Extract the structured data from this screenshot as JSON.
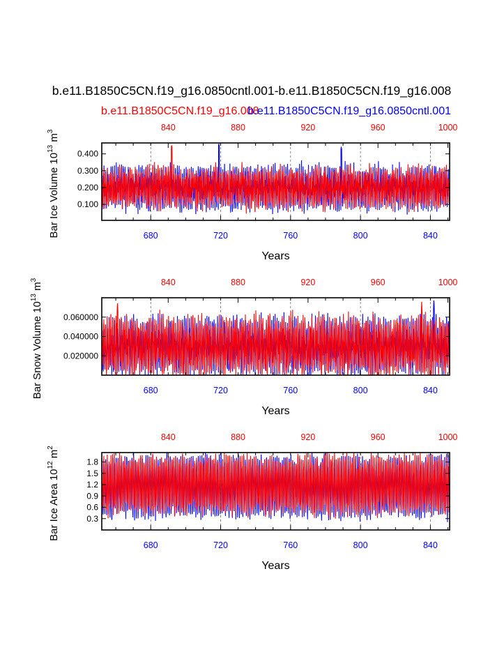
{
  "title": "b.e11.B1850C5CN.f19_g16.0850cntl.001-b.e11.B1850C5CN.f19_g16.008",
  "legend": {
    "red": "b.e11.B1850C5CN.f19_g16.008",
    "blue": "b.e11.B1850C5CN.f19_g16.0850cntl.001"
  },
  "colors": {
    "red_series": "#ff0000",
    "blue_series": "#0000ff",
    "axis": "#000000"
  },
  "chart_data": [
    {
      "type": "line",
      "ylabel": "Bar Ice Volume 10",
      "ylabel_sup": "13",
      "ylabel_unit": " m",
      "ylabel_unit_sup": "3",
      "xlabel": "Years",
      "x_bottom_ticks": [
        "680",
        "720",
        "760",
        "800",
        "840"
      ],
      "x_bottom_values": [
        680,
        720,
        760,
        800,
        840
      ],
      "x_bottom_range": [
        652,
        851
      ],
      "x_top_ticks": [
        "840",
        "880",
        "920",
        "960",
        "1000"
      ],
      "x_top_values": [
        840,
        880,
        920,
        960,
        1000
      ],
      "x_top_range": [
        802,
        1001
      ],
      "y_ticks": [
        "0.100",
        "0.200",
        "0.300",
        "0.400"
      ],
      "y_tick_values": [
        0.1,
        0.2,
        0.3,
        0.4
      ],
      "ylim": [
        0.005,
        0.465
      ],
      "series": [
        {
          "name": "b.e11.B1850C5CN.f19_g16.0850cntl.001",
          "color": "blue",
          "mean": 0.2,
          "amp": 0.09,
          "noise": 0.06,
          "seed": 11,
          "peaks": [
            [
              719,
              0.46
            ],
            [
              789,
              0.44
            ]
          ]
        },
        {
          "name": "b.e11.B1850C5CN.f19_g16.008",
          "color": "red",
          "mean": 0.2,
          "amp": 0.08,
          "noise": 0.06,
          "seed": 23,
          "peaks": [
            [
              692,
              0.45
            ]
          ]
        }
      ]
    },
    {
      "type": "line",
      "ylabel": "Bar Snow Volume 10",
      "ylabel_sup": "13",
      "ylabel_unit": " m",
      "ylabel_unit_sup": "3",
      "xlabel": "Years",
      "x_bottom_ticks": [
        "680",
        "720",
        "760",
        "800",
        "840"
      ],
      "x_bottom_values": [
        680,
        720,
        760,
        800,
        840
      ],
      "x_bottom_range": [
        652,
        851
      ],
      "x_top_ticks": [
        "840",
        "880",
        "920",
        "960",
        "1000"
      ],
      "x_top_values": [
        840,
        880,
        920,
        960,
        1000
      ],
      "x_top_range": [
        802,
        1001
      ],
      "y_ticks": [
        "0.020000",
        "0.040000",
        "0.060000"
      ],
      "y_tick_values": [
        0.02,
        0.04,
        0.06
      ],
      "ylim": [
        0.0,
        0.08
      ],
      "series": [
        {
          "name": "b.e11.B1850C5CN.f19_g16.0850cntl.001",
          "color": "blue",
          "mean": 0.03,
          "amp": 0.022,
          "noise": 0.012,
          "seed": 37,
          "peaks": [
            [
              842,
              0.079
            ]
          ]
        },
        {
          "name": "b.e11.B1850C5CN.f19_g16.008",
          "color": "red",
          "mean": 0.03,
          "amp": 0.022,
          "noise": 0.012,
          "seed": 51,
          "peaks": [
            [
              661,
              0.076
            ],
            [
              835,
              0.076
            ]
          ]
        }
      ]
    },
    {
      "type": "line",
      "ylabel": "Bar Ice Area 10",
      "ylabel_sup": "12",
      "ylabel_unit": " m",
      "ylabel_unit_sup": "2",
      "xlabel": "Years",
      "x_bottom_ticks": [
        "680",
        "720",
        "760",
        "800",
        "840"
      ],
      "x_bottom_values": [
        680,
        720,
        760,
        800,
        840
      ],
      "x_bottom_range": [
        652,
        851
      ],
      "x_top_ticks": [
        "840",
        "880",
        "920",
        "960",
        "1000"
      ],
      "x_top_values": [
        840,
        880,
        920,
        960,
        1000
      ],
      "x_top_range": [
        802,
        1001
      ],
      "y_ticks": [
        "0.3",
        "0.6",
        "0.9",
        "1.2",
        "1.5",
        "1.8"
      ],
      "y_tick_values": [
        0.3,
        0.6,
        0.9,
        1.2,
        1.5,
        1.8
      ],
      "ylim": [
        0.0,
        2.05
      ],
      "series": [
        {
          "name": "b.e11.B1850C5CN.f19_g16.0850cntl.001",
          "color": "blue",
          "mean": 1.15,
          "amp": 0.72,
          "noise": 0.1,
          "seed": 61,
          "peaks": []
        },
        {
          "name": "b.e11.B1850C5CN.f19_g16.008",
          "color": "red",
          "mean": 1.2,
          "amp": 0.68,
          "noise": 0.1,
          "seed": 79,
          "peaks": []
        }
      ]
    }
  ]
}
